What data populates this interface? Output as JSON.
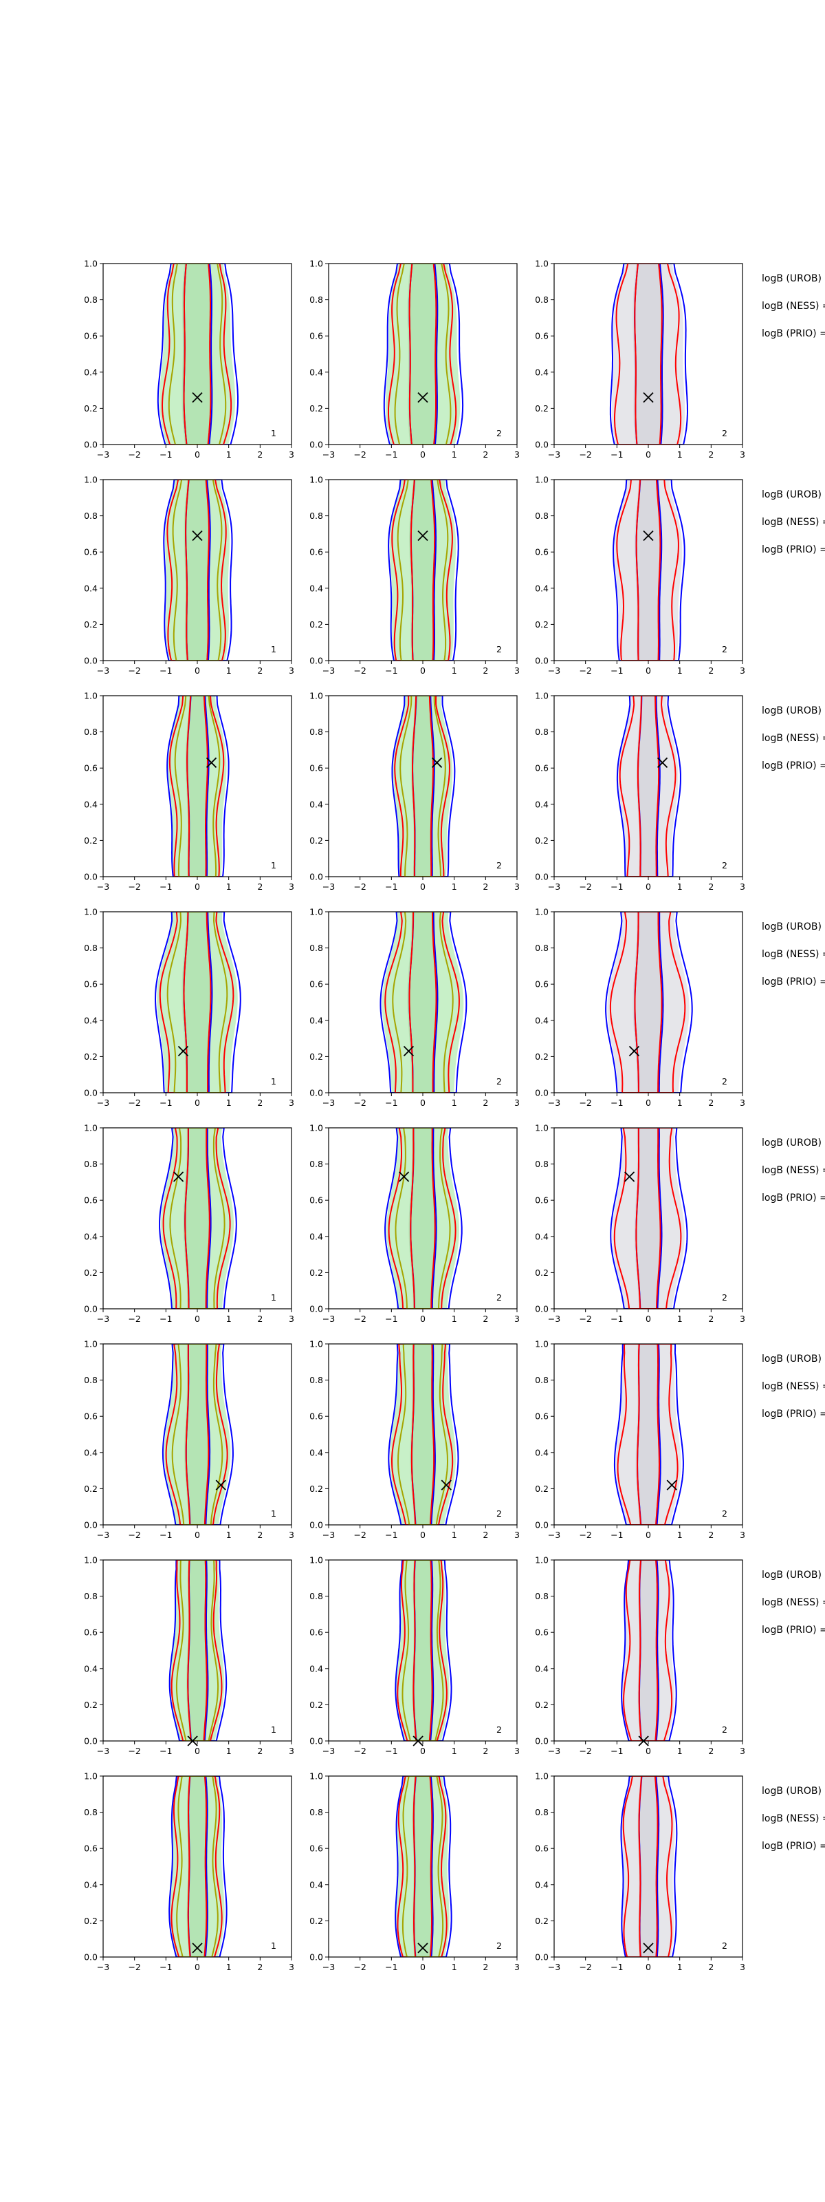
{
  "figure": {
    "background": "#ffffff",
    "colors": {
      "fill_green": "#c8f0c8",
      "fill_gray": "#e6e6ea",
      "blue": "#0000ff",
      "red": "#ff0000",
      "olive": "#a5a500",
      "axis": "#000000"
    }
  },
  "chart_data": {
    "type": "contour-grid",
    "rows": 8,
    "cols": 3,
    "xlim": [
      -3,
      3
    ],
    "ylim": [
      0,
      1
    ],
    "xticks": [
      "−3",
      "−2",
      "−1",
      "0",
      "1",
      "2",
      "3"
    ],
    "yticks": [
      "0.0",
      "0.2",
      "0.4",
      "0.6",
      "0.8",
      "1.0"
    ],
    "panel_labels": [
      "1",
      "2",
      "2"
    ],
    "legend_lines": [
      "logB (UROB) =",
      "logB (NESS) =",
      "logB (PRIO) ="
    ],
    "markers": [
      {
        "x": 0.0,
        "y": 0.26
      },
      {
        "x": 0.0,
        "y": 0.69
      },
      {
        "x": 0.45,
        "y": 0.63
      },
      {
        "x": -0.45,
        "y": 0.23
      },
      {
        "x": -0.6,
        "y": 0.73
      },
      {
        "x": 0.75,
        "y": 0.22
      },
      {
        "x": -0.15,
        "y": 0.0
      },
      {
        "x": 0.0,
        "y": 0.05
      }
    ],
    "contour_params": [
      {
        "outer": 1.15,
        "inner": 0.45,
        "spread_low": 1.8
      },
      {
        "outer": 1.1,
        "inner": 0.38,
        "spread_low": 1.2
      },
      {
        "outer": 0.95,
        "inner": 0.32,
        "spread_low": 0.9
      },
      {
        "outer": 1.25,
        "inner": 0.42,
        "spread_low": 1.6
      },
      {
        "outer": 1.15,
        "inner": 0.38,
        "spread_low": 1.1
      },
      {
        "outer": 1.05,
        "inner": 0.35,
        "spread_low": 1.0
      },
      {
        "outer": 0.85,
        "inner": 0.3,
        "spread_low": 0.85
      },
      {
        "outer": 0.9,
        "inner": 0.3,
        "spread_low": 0.9
      }
    ]
  }
}
